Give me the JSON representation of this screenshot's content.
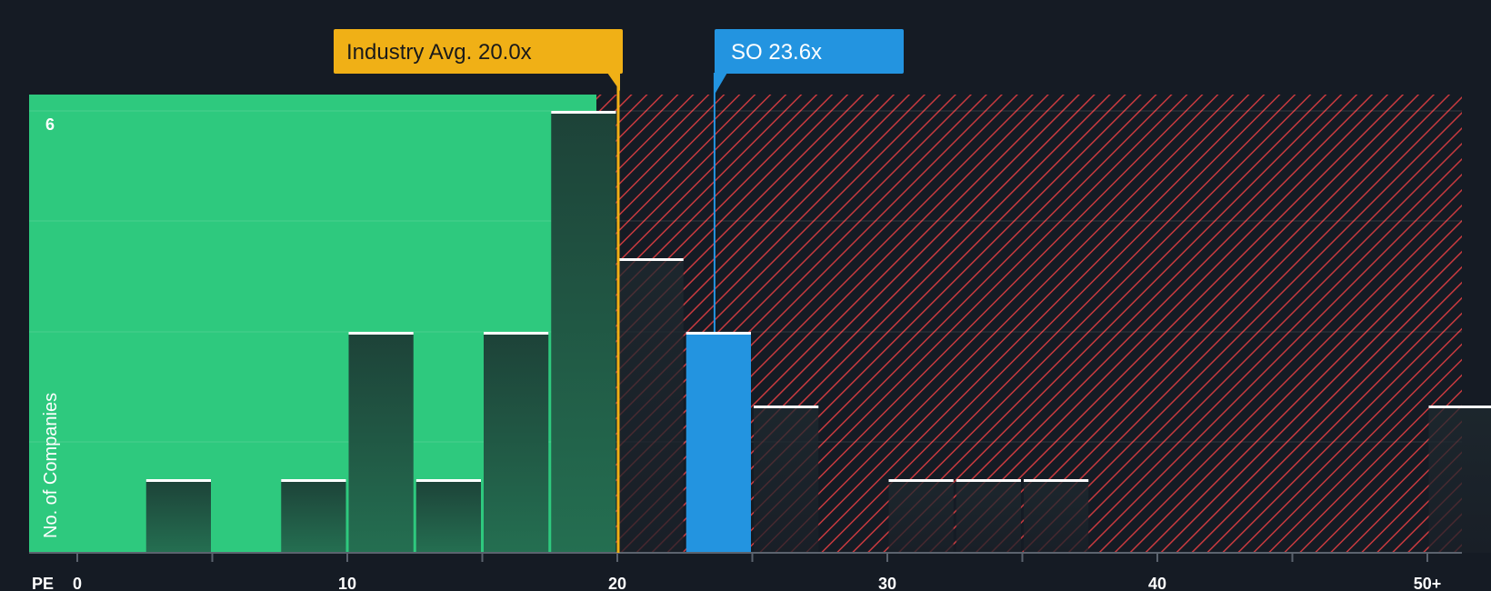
{
  "chart_data": {
    "type": "bar",
    "title": "",
    "xlabel": "PE",
    "ylabel": "No. of Companies",
    "x_range": [
      0,
      52
    ],
    "y_range": [
      0,
      6.15
    ],
    "y_tick_label": "6",
    "x_ticks": [
      {
        "value": 0,
        "label": "0"
      },
      {
        "value": 10,
        "label": "10"
      },
      {
        "value": 20,
        "label": "20"
      },
      {
        "value": 30,
        "label": "30"
      },
      {
        "value": 40,
        "label": "40"
      },
      {
        "value": 50,
        "label": "50+"
      }
    ],
    "bins": [
      {
        "start": 2.5,
        "end": 5.0,
        "count": 1
      },
      {
        "start": 7.5,
        "end": 10.0,
        "count": 1
      },
      {
        "start": 10.0,
        "end": 12.5,
        "count": 3
      },
      {
        "start": 12.5,
        "end": 15.0,
        "count": 1
      },
      {
        "start": 15.0,
        "end": 17.5,
        "count": 3
      },
      {
        "start": 17.5,
        "end": 20.0,
        "count": 6
      },
      {
        "start": 20.0,
        "end": 22.5,
        "count": 4
      },
      {
        "start": 22.5,
        "end": 25.0,
        "count": 3,
        "highlight": true
      },
      {
        "start": 25.0,
        "end": 27.5,
        "count": 2
      },
      {
        "start": 30.0,
        "end": 32.5,
        "count": 1
      },
      {
        "start": 32.5,
        "end": 35.0,
        "count": 1
      },
      {
        "start": 35.0,
        "end": 37.5,
        "count": 1
      },
      {
        "start": 50.0,
        "end": 52.5,
        "count": 2
      }
    ],
    "industry_avg": {
      "value": 20.0,
      "label": "Industry Avg. 20.0x"
    },
    "company": {
      "value": 23.6,
      "label": "SO 23.6x"
    },
    "colors": {
      "background": "#151b24",
      "undervalued_zone": "#2ec97e",
      "overvalued_hatch": "#c83a3f",
      "bar_dark": "#1c4a3e",
      "bar_highlight": "#2394e0",
      "industry_avg": "#f0b016",
      "company_marker": "#2394e0"
    }
  }
}
